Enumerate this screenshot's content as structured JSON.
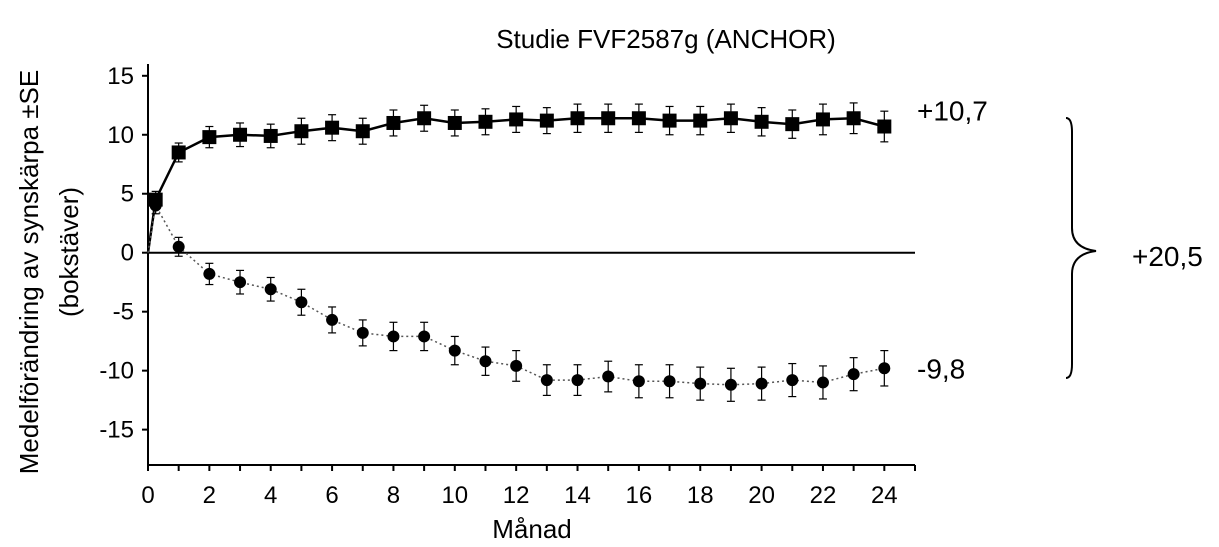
{
  "chart_data": {
    "type": "line",
    "title": "Studie FVF2587g (ANCHOR)",
    "xlabel": "Månad",
    "ylabel": "Medelförändring av synskärpa ±SE",
    "ylabel_sub": "(bokstäver)",
    "xlim": [
      0,
      25
    ],
    "ylim": [
      -18,
      16
    ],
    "xticks": [
      0,
      2,
      4,
      6,
      8,
      10,
      12,
      14,
      16,
      18,
      20,
      22,
      24
    ],
    "yticks": [
      15,
      10,
      5,
      0,
      -5,
      -10,
      -15
    ],
    "zero_line": true,
    "series": [
      {
        "marker": "square",
        "line_style": "solid",
        "x": [
          0,
          0.25,
          1,
          2,
          3,
          4,
          5,
          6,
          7,
          8,
          9,
          10,
          11,
          12,
          13,
          14,
          15,
          16,
          17,
          18,
          19,
          20,
          21,
          22,
          23,
          24
        ],
        "y": [
          0,
          4.5,
          8.5,
          9.8,
          10.0,
          9.9,
          10.3,
          10.6,
          10.3,
          11.0,
          11.4,
          11.0,
          11.1,
          11.3,
          11.2,
          11.4,
          11.4,
          11.4,
          11.2,
          11.2,
          11.4,
          11.1,
          10.9,
          11.3,
          11.4,
          10.7
        ],
        "se": [
          0,
          0.7,
          0.8,
          0.9,
          1.0,
          1.0,
          1.1,
          1.1,
          1.1,
          1.1,
          1.1,
          1.1,
          1.1,
          1.1,
          1.1,
          1.2,
          1.2,
          1.2,
          1.2,
          1.2,
          1.2,
          1.2,
          1.2,
          1.3,
          1.3,
          1.3
        ],
        "end_label": "+10,7"
      },
      {
        "marker": "circle",
        "line_style": "dotted",
        "x": [
          0,
          0.25,
          1,
          2,
          3,
          4,
          5,
          6,
          7,
          8,
          9,
          10,
          11,
          12,
          13,
          14,
          15,
          16,
          17,
          18,
          19,
          20,
          21,
          22,
          23,
          24
        ],
        "y": [
          0,
          4.0,
          0.5,
          -1.8,
          -2.5,
          -3.1,
          -4.2,
          -5.7,
          -6.8,
          -7.1,
          -7.1,
          -8.3,
          -9.2,
          -9.6,
          -10.8,
          -10.8,
          -10.5,
          -10.9,
          -10.9,
          -11.1,
          -11.2,
          -11.1,
          -10.8,
          -11.0,
          -10.3,
          -9.8
        ],
        "se": [
          0,
          0.7,
          0.8,
          0.9,
          1.0,
          1.0,
          1.1,
          1.1,
          1.1,
          1.2,
          1.2,
          1.2,
          1.2,
          1.3,
          1.3,
          1.3,
          1.3,
          1.4,
          1.4,
          1.4,
          1.4,
          1.4,
          1.4,
          1.4,
          1.4,
          1.5
        ],
        "end_label": "-9,8"
      }
    ],
    "difference_label": "+20,5"
  }
}
